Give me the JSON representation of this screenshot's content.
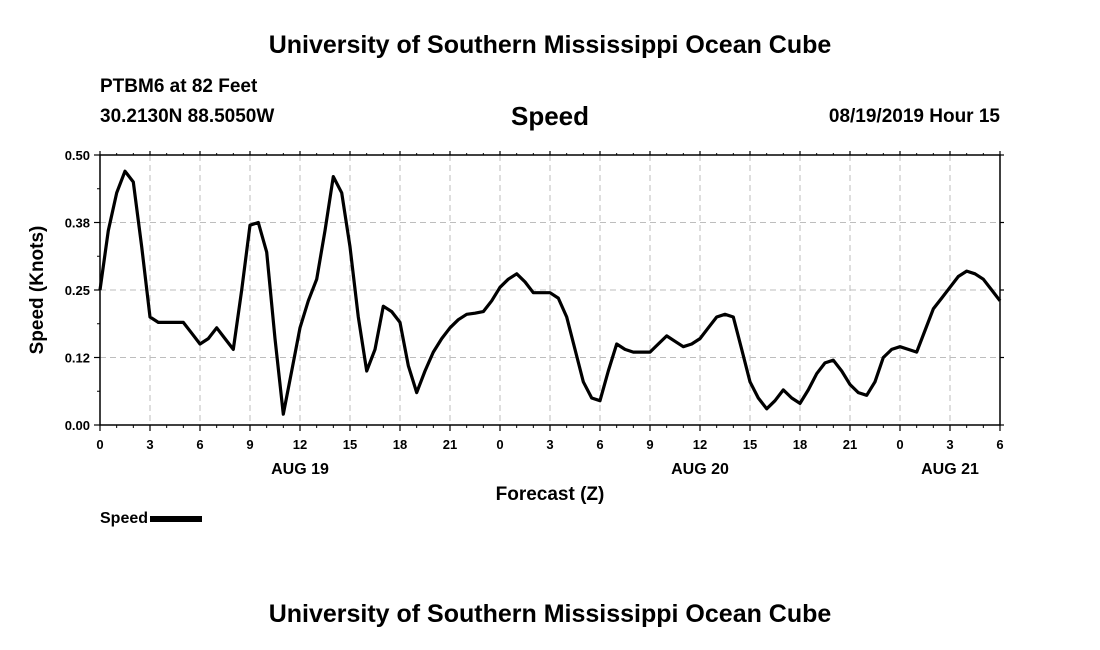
{
  "header": {
    "title_top": "University of Southern Mississippi Ocean Cube",
    "title_bottom": "University of Southern Mississippi Ocean Cube",
    "station": "PTBM6 at 82 Feet",
    "coords": "30.2130N 88.5050W",
    "variable": "Speed",
    "timestamp": "08/19/2019 Hour 15"
  },
  "legend": {
    "label": "Speed",
    "color": "#000000"
  },
  "chart_data": {
    "type": "line",
    "title": "Speed",
    "xlabel": "Forecast (Z)",
    "ylabel": "Speed (Knots)",
    "xlim": [
      0,
      54
    ],
    "ylim": [
      0,
      0.5
    ],
    "grid": true,
    "y_ticks": [
      {
        "value": 0.0,
        "label": "0.00"
      },
      {
        "value": 0.125,
        "label": "0.12"
      },
      {
        "value": 0.25,
        "label": "0.25"
      },
      {
        "value": 0.375,
        "label": "0.38"
      },
      {
        "value": 0.5,
        "label": "0.50"
      }
    ],
    "x_ticks": [
      {
        "value": 0,
        "label": "0"
      },
      {
        "value": 3,
        "label": "3"
      },
      {
        "value": 6,
        "label": "6"
      },
      {
        "value": 9,
        "label": "9"
      },
      {
        "value": 12,
        "label": "12"
      },
      {
        "value": 15,
        "label": "15"
      },
      {
        "value": 18,
        "label": "18"
      },
      {
        "value": 21,
        "label": "21"
      },
      {
        "value": 24,
        "label": "0"
      },
      {
        "value": 27,
        "label": "3"
      },
      {
        "value": 30,
        "label": "6"
      },
      {
        "value": 33,
        "label": "9"
      },
      {
        "value": 36,
        "label": "12"
      },
      {
        "value": 39,
        "label": "15"
      },
      {
        "value": 42,
        "label": "18"
      },
      {
        "value": 45,
        "label": "21"
      },
      {
        "value": 48,
        "label": "0"
      },
      {
        "value": 51,
        "label": "3"
      },
      {
        "value": 54,
        "label": "6"
      }
    ],
    "date_labels": [
      {
        "value": 12,
        "label": "AUG 19"
      },
      {
        "value": 36,
        "label": "AUG 20"
      },
      {
        "value": 51,
        "label": "AUG 21"
      }
    ],
    "series": [
      {
        "name": "Speed",
        "color": "#000000",
        "x": [
          0,
          0.5,
          1,
          1.5,
          2,
          2.5,
          3,
          3.5,
          4,
          4.5,
          5,
          5.5,
          6,
          6.5,
          7,
          7.5,
          8,
          8.5,
          9,
          9.5,
          10,
          10.5,
          11,
          11.5,
          12,
          12.5,
          13,
          13.5,
          14,
          14.5,
          15,
          15.5,
          16,
          16.5,
          17,
          17.5,
          18,
          18.5,
          19,
          19.5,
          20,
          20.5,
          21,
          21.5,
          22,
          22.5,
          23,
          23.5,
          24,
          24.5,
          25,
          25.5,
          26,
          26.5,
          27,
          27.5,
          28,
          28.5,
          29,
          29.5,
          30,
          30.5,
          31,
          31.5,
          32,
          32.5,
          33,
          33.5,
          34,
          34.5,
          35,
          35.5,
          36,
          36.5,
          37,
          37.5,
          38,
          38.5,
          39,
          39.5,
          40,
          40.5,
          41,
          41.5,
          42,
          42.5,
          43,
          43.5,
          44,
          44.5,
          45,
          45.5,
          46,
          46.5,
          47,
          47.5,
          48,
          48.5,
          49,
          49.5,
          50,
          50.5,
          51,
          51.5,
          52,
          52.5,
          53,
          53.5,
          54
        ],
        "values": [
          0.25,
          0.36,
          0.43,
          0.47,
          0.45,
          0.33,
          0.2,
          0.19,
          0.19,
          0.19,
          0.19,
          0.17,
          0.15,
          0.16,
          0.18,
          0.16,
          0.14,
          0.25,
          0.37,
          0.375,
          0.32,
          0.16,
          0.02,
          0.1,
          0.18,
          0.23,
          0.27,
          0.36,
          0.46,
          0.43,
          0.33,
          0.2,
          0.1,
          0.14,
          0.22,
          0.21,
          0.19,
          0.11,
          0.06,
          0.1,
          0.135,
          0.16,
          0.18,
          0.195,
          0.205,
          0.207,
          0.21,
          0.23,
          0.255,
          0.27,
          0.28,
          0.265,
          0.245,
          0.245,
          0.245,
          0.235,
          0.2,
          0.14,
          0.08,
          0.05,
          0.045,
          0.1,
          0.15,
          0.14,
          0.135,
          0.135,
          0.135,
          0.15,
          0.165,
          0.155,
          0.145,
          0.15,
          0.16,
          0.18,
          0.2,
          0.205,
          0.2,
          0.14,
          0.08,
          0.05,
          0.03,
          0.045,
          0.065,
          0.05,
          0.04,
          0.065,
          0.095,
          0.115,
          0.12,
          0.1,
          0.075,
          0.06,
          0.055,
          0.08,
          0.125,
          0.14,
          0.145,
          0.14,
          0.135,
          0.175,
          0.215,
          0.235,
          0.255,
          0.275,
          0.285,
          0.28,
          0.27,
          0.25,
          0.23
        ]
      }
    ]
  }
}
